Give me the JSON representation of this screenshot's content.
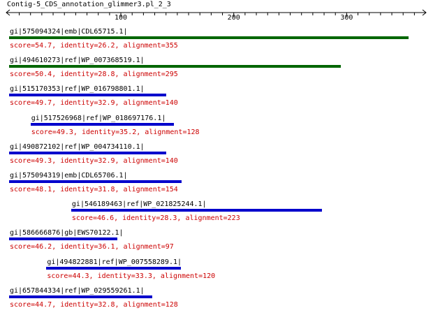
{
  "title": "Contig-5_CDS_annotation_glimmer3.pl_2_3",
  "axis": {
    "min": 1,
    "max": 361,
    "tick_labels": [
      "100",
      "200",
      "300"
    ],
    "tick_values": [
      100,
      200,
      300
    ]
  },
  "colors": {
    "bar_top": "#006600",
    "bar_other": "#0000cc",
    "score_text": "#cc0000",
    "label_text": "#000000"
  },
  "hits": [
    {
      "label": "gi|575094324|emb|CDL65715.1|",
      "score": "score=54.7, identity=26.2, alignment=355",
      "start": 1,
      "end": 355,
      "color": "#006600"
    },
    {
      "label": "gi|494610273|ref|WP_007368519.1|",
      "score": "score=50.4, identity=28.8, alignment=295",
      "start": 1,
      "end": 295,
      "color": "#006600"
    },
    {
      "label": "gi|515170353|ref|WP_016798801.1|",
      "score": "score=49.7, identity=32.9, alignment=140",
      "start": 1,
      "end": 140,
      "color": "#0000cc"
    },
    {
      "label": "gi|517526968|ref|WP_018697176.1|",
      "score": "score=49.3, identity=35.2, alignment=128",
      "start": 20,
      "end": 147,
      "color": "#0000cc"
    },
    {
      "label": "gi|490872102|ref|WP_004734110.1|",
      "score": "score=49.3, identity=32.9, alignment=140",
      "start": 1,
      "end": 140,
      "color": "#0000cc"
    },
    {
      "label": "gi|575094319|emb|CDL65706.1|",
      "score": "score=48.1, identity=31.8, alignment=154",
      "start": 1,
      "end": 154,
      "color": "#0000cc"
    },
    {
      "label": "gi|546189463|ref|WP_021825244.1|",
      "score": "score=46.6, identity=28.3, alignment=223",
      "start": 56,
      "end": 278,
      "color": "#0000cc"
    },
    {
      "label": "gi|586666876|gb|EWS70122.1|",
      "score": "score=46.2, identity=36.1, alignment=97",
      "start": 1,
      "end": 97,
      "color": "#0000cc"
    },
    {
      "label": "gi|494822881|ref|WP_007558289.1|",
      "score": "score=44.3, identity=33.3, alignment=120",
      "start": 34,
      "end": 153,
      "color": "#0000cc"
    },
    {
      "label": "gi|657844334|ref|WP_029559261.1|",
      "score": "score=44.7, identity=32.8, alignment=128",
      "start": 1,
      "end": 128,
      "color": "#0000cc"
    }
  ]
}
